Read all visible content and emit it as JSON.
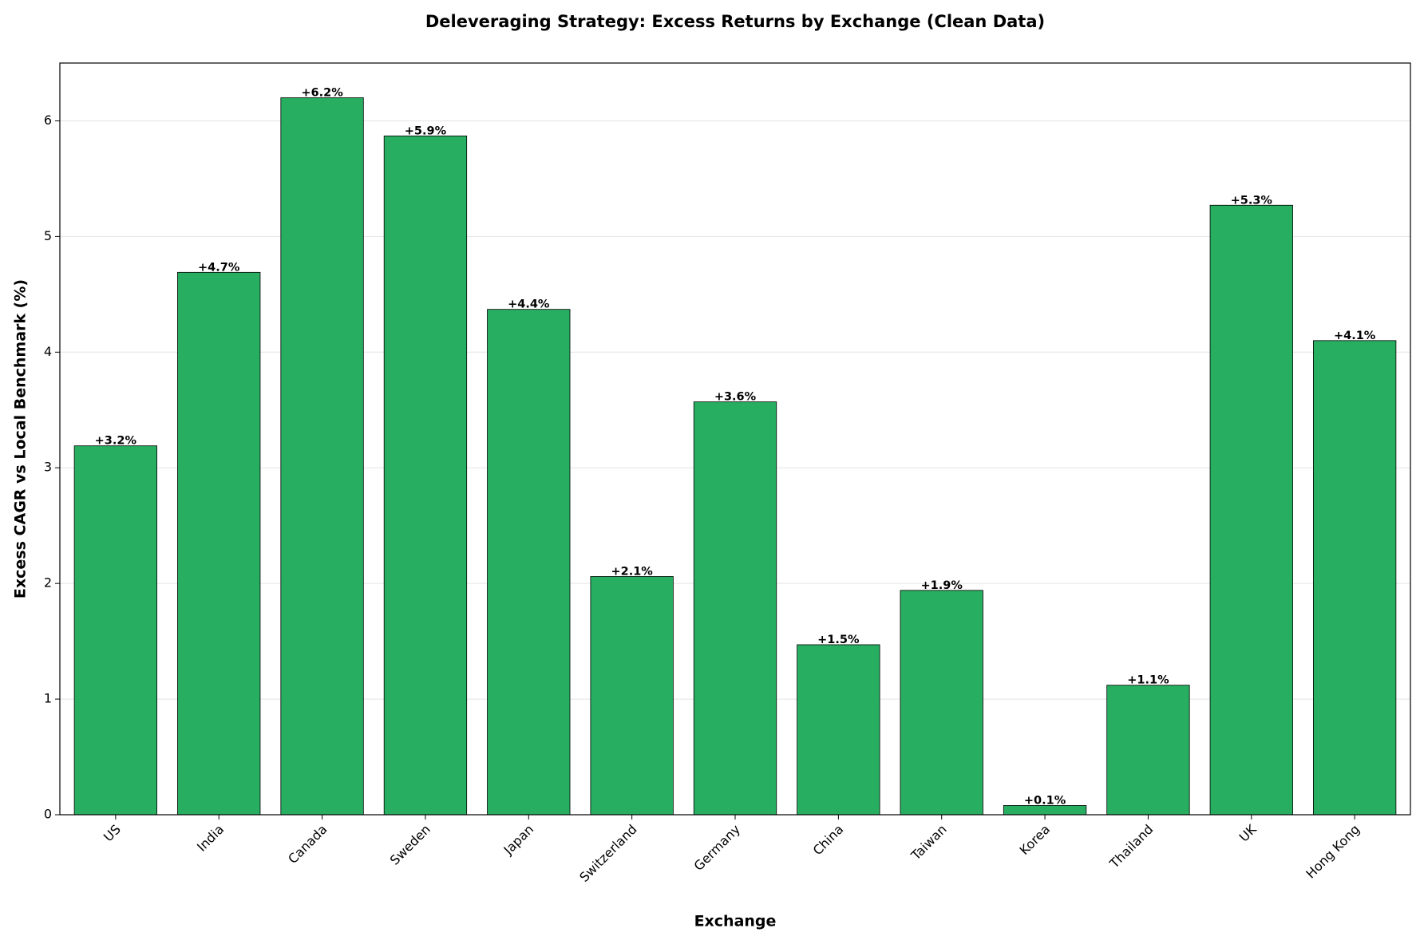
{
  "chart_data": {
    "type": "bar",
    "title": "Deleveraging Strategy: Excess Returns by Exchange (Clean Data)",
    "x_label": "Exchange",
    "y_label": "Excess CAGR vs Local Benchmark (%)",
    "categories": [
      "US",
      "India",
      "Canada",
      "Sweden",
      "Japan",
      "Switzerland",
      "Germany",
      "China",
      "Taiwan",
      "Korea",
      "Thailand",
      "UK",
      "Hong Kong"
    ],
    "values": [
      3.19,
      4.69,
      6.2,
      5.87,
      4.37,
      2.06,
      3.57,
      1.47,
      1.94,
      0.08,
      1.12,
      5.27,
      4.1
    ],
    "value_labels": [
      "+3.2%",
      "+4.7%",
      "+6.2%",
      "+5.9%",
      "+4.4%",
      "+2.1%",
      "+3.6%",
      "+1.5%",
      "+1.9%",
      "+0.1%",
      "+1.1%",
      "+5.3%",
      "+4.1%"
    ],
    "color": "#27ae60",
    "ylim": [
      0,
      6.5
    ],
    "yticks": [
      0,
      1,
      2,
      3,
      4,
      5,
      6
    ],
    "grid": true
  }
}
